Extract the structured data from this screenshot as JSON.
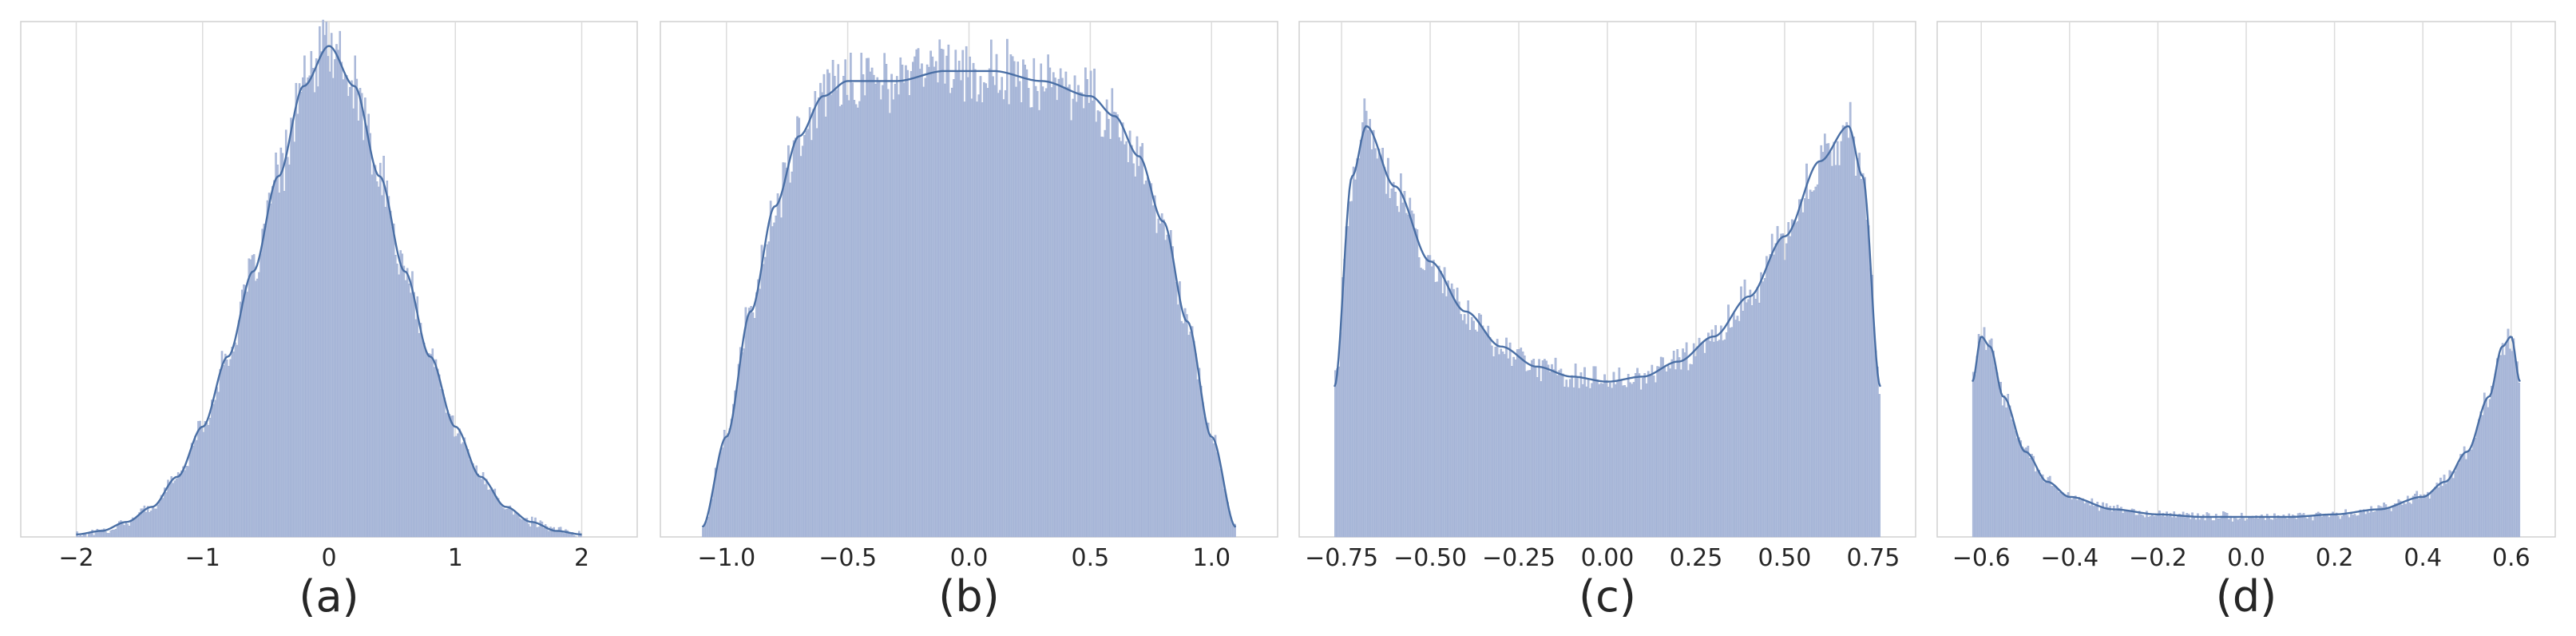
{
  "figure": {
    "background": "#ffffff",
    "bar_color": "#aebcdb",
    "bar_edge": "#98a9d0",
    "kde_color": "#4a6fa5",
    "grid_color": "#dcdcdc",
    "frame_color": "#d0d0d0"
  },
  "chart_data": [
    {
      "type": "histogram",
      "caption": "(a)",
      "title": "",
      "xlabel": "",
      "ylabel": "",
      "xlim": [
        -2.3,
        2.3
      ],
      "xticks": [
        -2,
        -1,
        0,
        1,
        2
      ],
      "xtick_labels": [
        "−2",
        "−1",
        "0",
        "1",
        "2"
      ],
      "grid": "vertical",
      "kde": true,
      "distribution": "bell-shaped, centered at 0",
      "density_points": [
        [
          -2.0,
          0.005
        ],
        [
          -1.8,
          0.012
        ],
        [
          -1.6,
          0.03
        ],
        [
          -1.4,
          0.06
        ],
        [
          -1.2,
          0.12
        ],
        [
          -1.0,
          0.22
        ],
        [
          -0.8,
          0.36
        ],
        [
          -0.6,
          0.53
        ],
        [
          -0.4,
          0.72
        ],
        [
          -0.2,
          0.9
        ],
        [
          0.0,
          0.98
        ],
        [
          0.2,
          0.9
        ],
        [
          0.4,
          0.72
        ],
        [
          0.6,
          0.53
        ],
        [
          0.8,
          0.36
        ],
        [
          1.0,
          0.22
        ],
        [
          1.2,
          0.12
        ],
        [
          1.4,
          0.06
        ],
        [
          1.6,
          0.03
        ],
        [
          1.8,
          0.012
        ],
        [
          2.0,
          0.005
        ]
      ]
    },
    {
      "type": "histogram",
      "caption": "(b)",
      "title": "",
      "xlabel": "",
      "ylabel": "",
      "xlim": [
        -1.2,
        1.2
      ],
      "xticks": [
        -1.0,
        -0.5,
        0.0,
        0.5,
        1.0
      ],
      "xtick_labels": [
        "−1.0",
        "−0.5",
        "0.0",
        "0.5",
        "1.0"
      ],
      "grid": "vertical",
      "kde": true,
      "distribution": "broad flat-topped plateau from -1.1 to 1.1",
      "density_points": [
        [
          -1.1,
          0.02
        ],
        [
          -1.0,
          0.2
        ],
        [
          -0.9,
          0.45
        ],
        [
          -0.8,
          0.66
        ],
        [
          -0.7,
          0.8
        ],
        [
          -0.6,
          0.88
        ],
        [
          -0.5,
          0.91
        ],
        [
          -0.3,
          0.91
        ],
        [
          -0.1,
          0.93
        ],
        [
          0.1,
          0.93
        ],
        [
          0.3,
          0.91
        ],
        [
          0.5,
          0.88
        ],
        [
          0.6,
          0.84
        ],
        [
          0.7,
          0.76
        ],
        [
          0.8,
          0.63
        ],
        [
          0.9,
          0.43
        ],
        [
          1.0,
          0.2
        ],
        [
          1.1,
          0.02
        ]
      ]
    },
    {
      "type": "histogram",
      "caption": "(c)",
      "title": "",
      "xlabel": "",
      "ylabel": "",
      "xlim": [
        -0.82,
        0.82
      ],
      "xticks": [
        -0.75,
        -0.5,
        -0.25,
        0.0,
        0.25,
        0.5,
        0.75
      ],
      "xtick_labels": [
        "−0.75",
        "−0.50",
        "−0.25",
        "0.00",
        "0.25",
        "0.50",
        "0.75"
      ],
      "grid": "vertical",
      "kde": true,
      "distribution": "U-shaped, peaks near ±0.68",
      "density_points": [
        [
          -0.77,
          0.3
        ],
        [
          -0.72,
          0.72
        ],
        [
          -0.68,
          0.82
        ],
        [
          -0.6,
          0.7
        ],
        [
          -0.5,
          0.55
        ],
        [
          -0.4,
          0.45
        ],
        [
          -0.3,
          0.38
        ],
        [
          -0.2,
          0.34
        ],
        [
          -0.1,
          0.32
        ],
        [
          0.0,
          0.31
        ],
        [
          0.1,
          0.32
        ],
        [
          0.2,
          0.35
        ],
        [
          0.3,
          0.4
        ],
        [
          0.4,
          0.48
        ],
        [
          0.5,
          0.6
        ],
        [
          0.6,
          0.75
        ],
        [
          0.68,
          0.82
        ],
        [
          0.72,
          0.72
        ],
        [
          0.77,
          0.3
        ]
      ]
    },
    {
      "type": "histogram",
      "caption": "(d)",
      "title": "",
      "xlabel": "",
      "ylabel": "",
      "xlim": [
        -0.66,
        0.66
      ],
      "xticks": [
        -0.6,
        -0.4,
        -0.2,
        0.0,
        0.2,
        0.4,
        0.6
      ],
      "xtick_labels": [
        "−0.6",
        "−0.4",
        "−0.2",
        "0.0",
        "0.2",
        "0.4",
        "0.6"
      ],
      "grid": "vertical",
      "kde": true,
      "distribution": "sharply U-shaped, spikes at ±0.62",
      "density_points": [
        [
          -0.62,
          0.31
        ],
        [
          -0.6,
          0.4
        ],
        [
          -0.58,
          0.38
        ],
        [
          -0.55,
          0.28
        ],
        [
          -0.5,
          0.17
        ],
        [
          -0.45,
          0.11
        ],
        [
          -0.4,
          0.08
        ],
        [
          -0.3,
          0.055
        ],
        [
          -0.2,
          0.045
        ],
        [
          -0.1,
          0.04
        ],
        [
          0.0,
          0.04
        ],
        [
          0.1,
          0.04
        ],
        [
          0.2,
          0.045
        ],
        [
          0.3,
          0.055
        ],
        [
          0.4,
          0.08
        ],
        [
          0.45,
          0.11
        ],
        [
          0.5,
          0.17
        ],
        [
          0.55,
          0.28
        ],
        [
          0.58,
          0.38
        ],
        [
          0.6,
          0.4
        ],
        [
          0.62,
          0.31
        ]
      ]
    }
  ]
}
